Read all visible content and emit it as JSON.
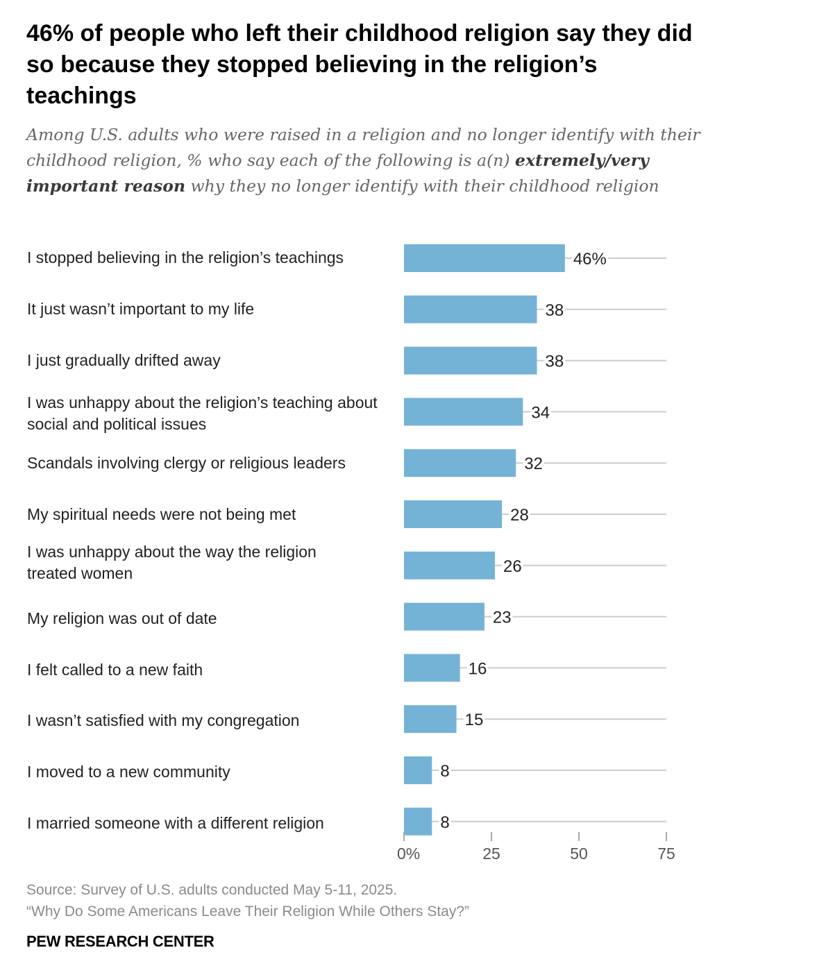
{
  "header": {
    "title": "46% of people who left their childhood religion say they did so because they stopped believing in the religion’s teachings",
    "subtitle_part1": "Among U.S. adults who were raised in a religion and no longer identify with their childhood religion, % who say each of the following is a(n) ",
    "subtitle_bold": "extremely/very important reason",
    "subtitle_part2": " why they no longer identify with their childhood religion"
  },
  "colors": {
    "bar": "#74b3d6",
    "gridline": "#cccccc",
    "axis": "#aaaaaa"
  },
  "chart_data": {
    "type": "bar",
    "orientation": "horizontal",
    "categories": [
      "I stopped believing in the religion’s teachings",
      "It just wasn’t important to my life",
      "I just gradually drifted away",
      "I was unhappy about the religion’s teaching about social and political issues",
      "Scandals involving clergy or religious leaders",
      "My spiritual needs were not being met",
      "I was unhappy about the way the religion treated women",
      "My religion was out of date",
      "I felt called to a new faith",
      "I wasn’t satisfied with my congregation",
      "I moved to a new community",
      "I married someone with a different religion"
    ],
    "values": [
      46,
      38,
      38,
      34,
      32,
      28,
      26,
      23,
      16,
      15,
      8,
      8
    ],
    "value_labels": [
      "46%",
      "38",
      "38",
      "34",
      "32",
      "28",
      "26",
      "23",
      "16",
      "15",
      "8",
      "8"
    ],
    "xlim": [
      0,
      75
    ],
    "xticks": [
      0,
      25,
      50,
      75
    ],
    "xtick_labels": [
      "0%",
      "25",
      "50",
      "75"
    ],
    "title": "46% of people who left their childhood religion say they did so because they stopped believing in the religion’s teachings",
    "xlabel": "",
    "ylabel": "",
    "grid": false,
    "legend": "none"
  },
  "footer": {
    "source": "Source: Survey of U.S. adults conducted May 5-11, 2025.",
    "report": "“Why Do Some Americans Leave Their Religion While Others Stay?”",
    "brand": "PEW RESEARCH CENTER"
  }
}
